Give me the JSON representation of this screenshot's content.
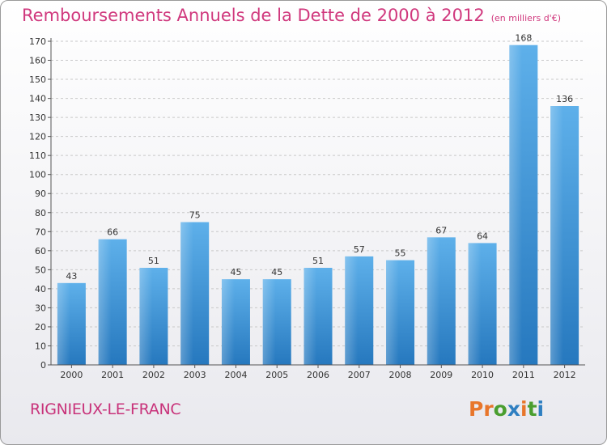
{
  "title": "Remboursements Annuels de la Dette de 2000 à 2012",
  "unit_note": "(en milliers d'€)",
  "commune": "RIGNIEUX-LE-FRANC",
  "logo": {
    "text": "Proxiti",
    "colors": [
      "#e8762b",
      "#e8762b",
      "#4a9e2f",
      "#2f7fc1",
      "#e8762b",
      "#4a9e2f",
      "#2f7fc1"
    ]
  },
  "colors": {
    "bar": "#3b93d9",
    "title": "#d0387d",
    "commune": "#c8327a"
  },
  "chart_data": {
    "type": "bar",
    "categories": [
      "2000",
      "2001",
      "2002",
      "2003",
      "2004",
      "2005",
      "2006",
      "2007",
      "2008",
      "2009",
      "2010",
      "2011",
      "2012"
    ],
    "values": [
      43,
      66,
      51,
      75,
      45,
      45,
      51,
      57,
      55,
      67,
      64,
      168,
      136
    ],
    "data_labels": [
      "43",
      "66",
      "51",
      "75",
      "45",
      "45",
      "51",
      "57",
      "55",
      "67",
      "64",
      "168",
      "136"
    ],
    "ylim": [
      0,
      170
    ],
    "yticks": [
      0,
      10,
      20,
      30,
      40,
      50,
      60,
      70,
      80,
      90,
      100,
      110,
      120,
      130,
      140,
      150,
      160,
      170
    ],
    "ytick_labels": [
      "0",
      "10",
      "20",
      "30",
      "40",
      "50",
      "60",
      "70",
      "80",
      "90",
      "100",
      "110",
      "120",
      "130",
      "140",
      "150",
      "160",
      "170"
    ],
    "grid": true
  }
}
